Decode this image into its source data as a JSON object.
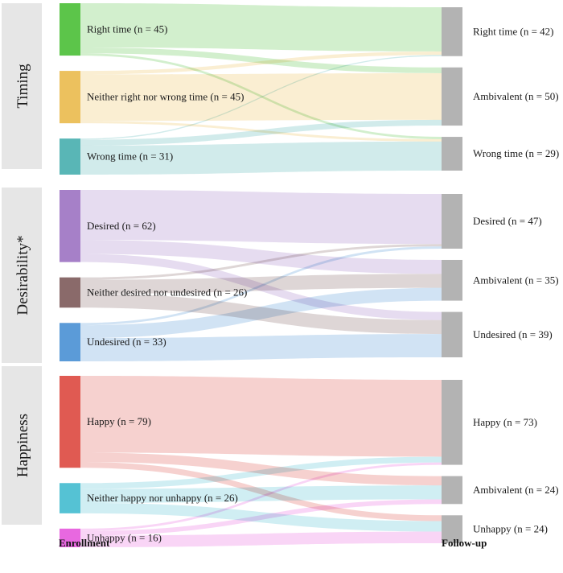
{
  "chart_data": {
    "type": "sankey",
    "axis_labels": {
      "left": "Enrollment",
      "right": "Follow-up"
    },
    "sections": [
      {
        "name": "Timing",
        "sources": [
          {
            "id": "rt",
            "label": "Right time (n = 45)",
            "value": 45,
            "color": "#5cc54a"
          },
          {
            "id": "nrw",
            "label": "Neither right nor wrong time (n = 45)",
            "value": 45,
            "color": "#ecc15e"
          },
          {
            "id": "wt",
            "label": "Wrong time (n = 31)",
            "value": 31,
            "color": "#59b6b6"
          }
        ],
        "targets": [
          {
            "id": "t_rt",
            "label": "Right time (n = 42)",
            "value": 42
          },
          {
            "id": "t_amb",
            "label": "Ambivalent (n = 50)",
            "value": 50
          },
          {
            "id": "t_wt",
            "label": "Wrong time (n = 29)",
            "value": 29
          }
        ],
        "flows": [
          {
            "source": "rt",
            "target": "t_rt",
            "value": 38
          },
          {
            "source": "rt",
            "target": "t_amb",
            "value": 5
          },
          {
            "source": "rt",
            "target": "t_wt",
            "value": 2
          },
          {
            "source": "nrw",
            "target": "t_rt",
            "value": 3
          },
          {
            "source": "nrw",
            "target": "t_amb",
            "value": 40
          },
          {
            "source": "nrw",
            "target": "t_wt",
            "value": 2
          },
          {
            "source": "wt",
            "target": "t_rt",
            "value": 1
          },
          {
            "source": "wt",
            "target": "t_amb",
            "value": 5
          },
          {
            "source": "wt",
            "target": "t_wt",
            "value": 25
          }
        ]
      },
      {
        "name": "Desirability*",
        "sources": [
          {
            "id": "des",
            "label": "Desired (n = 62)",
            "value": 62,
            "color": "#a680c8"
          },
          {
            "id": "ndu",
            "label": "Neither desired nor undesired (n = 26)",
            "value": 26,
            "color": "#8a6a6a"
          },
          {
            "id": "und",
            "label": "Undesired (n = 33)",
            "value": 33,
            "color": "#5b9bd8"
          }
        ],
        "targets": [
          {
            "id": "t_des",
            "label": "Desired (n = 47)",
            "value": 47
          },
          {
            "id": "t_amb2",
            "label": "Ambivalent (n = 35)",
            "value": 35
          },
          {
            "id": "t_und",
            "label": "Undesired (n = 39)",
            "value": 39
          }
        ],
        "flows": [
          {
            "source": "des",
            "target": "t_des",
            "value": 43
          },
          {
            "source": "des",
            "target": "t_amb2",
            "value": 12
          },
          {
            "source": "des",
            "target": "t_und",
            "value": 7
          },
          {
            "source": "ndu",
            "target": "t_des",
            "value": 2
          },
          {
            "source": "ndu",
            "target": "t_amb2",
            "value": 12
          },
          {
            "source": "ndu",
            "target": "t_und",
            "value": 12
          },
          {
            "source": "und",
            "target": "t_des",
            "value": 2
          },
          {
            "source": "und",
            "target": "t_amb2",
            "value": 11
          },
          {
            "source": "und",
            "target": "t_und",
            "value": 20
          }
        ]
      },
      {
        "name": "Happiness",
        "sources": [
          {
            "id": "hap",
            "label": "Happy (n = 79)",
            "value": 79,
            "color": "#e05a52"
          },
          {
            "id": "nhu",
            "label": "Neither happy nor unhappy (n = 26)",
            "value": 26,
            "color": "#55c2d4"
          },
          {
            "id": "unh",
            "label": "Unhappy (n = 16)",
            "value": 16,
            "color": "#e868e0"
          }
        ],
        "targets": [
          {
            "id": "t_hap",
            "label": "Happy (n = 73)",
            "value": 73
          },
          {
            "id": "t_amb3",
            "label": "Ambivalent (n = 24)",
            "value": 24
          },
          {
            "id": "t_unh",
            "label": "Unhappy (n = 24)",
            "value": 24
          }
        ],
        "flows": [
          {
            "source": "hap",
            "target": "t_hap",
            "value": 66
          },
          {
            "source": "hap",
            "target": "t_amb3",
            "value": 8
          },
          {
            "source": "hap",
            "target": "t_unh",
            "value": 5
          },
          {
            "source": "nhu",
            "target": "t_hap",
            "value": 5
          },
          {
            "source": "nhu",
            "target": "t_amb3",
            "value": 12
          },
          {
            "source": "nhu",
            "target": "t_unh",
            "value": 9
          },
          {
            "source": "unh",
            "target": "t_hap",
            "value": 2
          },
          {
            "source": "unh",
            "target": "t_amb3",
            "value": 4
          },
          {
            "source": "unh",
            "target": "t_unh",
            "value": 10
          }
        ]
      }
    ],
    "target_color": "#b3b3b3"
  }
}
